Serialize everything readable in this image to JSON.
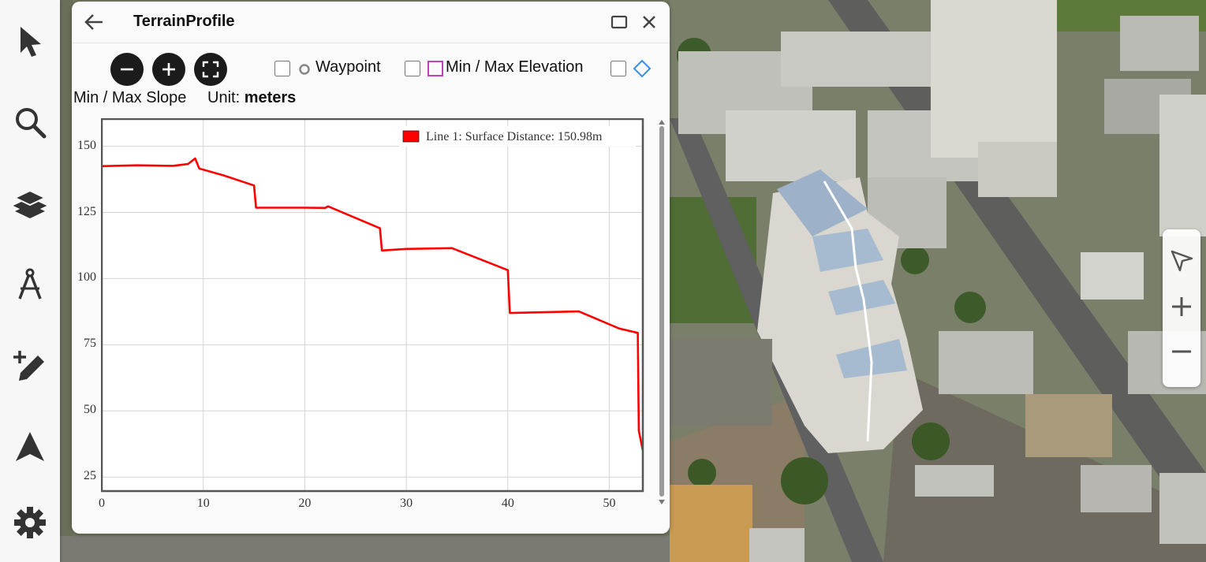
{
  "toolbar": {
    "items": [
      {
        "icon": "cursor-arrow-icon"
      },
      {
        "icon": "search-icon"
      },
      {
        "icon": "layers-icon"
      },
      {
        "icon": "measure-compass-icon"
      },
      {
        "icon": "draw-add-icon"
      },
      {
        "icon": "navigate-arrow-icon"
      },
      {
        "icon": "gear-icon"
      }
    ]
  },
  "panel": {
    "title": "TerrainProfile",
    "controls": {
      "zoom_out_icon": "minus-circle-icon",
      "zoom_in_icon": "plus-circle-icon",
      "fit_icon": "fullscreen-icon",
      "waypoint_label": "Waypoint",
      "minmax_elevation_label": "Min / Max Elevation",
      "minmax_slope_label": "Min / Max Slope",
      "unit_prefix": "Unit:",
      "unit_value": "meters",
      "waypoint_marker_color": "#888888",
      "elevation_marker_color": "#c040c0",
      "slope_marker_color": "#3a8ee6"
    }
  },
  "chart_data": {
    "type": "line",
    "xlim": [
      0,
      53.3
    ],
    "ylim": [
      20,
      160
    ],
    "x_ticks": [
      0,
      10,
      20,
      30,
      40,
      50
    ],
    "y_ticks": [
      25,
      50,
      75,
      100,
      125,
      150
    ],
    "grid": true,
    "legend": "top-right",
    "series": [
      {
        "name": "Line 1: Surface Distance: 150.98m",
        "color": "#ff0000",
        "points": [
          [
            0,
            142.5
          ],
          [
            3.5,
            142.8
          ],
          [
            7,
            142.6
          ],
          [
            8.5,
            143.3
          ],
          [
            9.2,
            145.4
          ],
          [
            9.6,
            141.6
          ],
          [
            12,
            139
          ],
          [
            15,
            135.2
          ],
          [
            15.2,
            126.8
          ],
          [
            20,
            126.8
          ],
          [
            22,
            126.7
          ],
          [
            22.3,
            127.3
          ],
          [
            27.4,
            119
          ],
          [
            27.6,
            110.6
          ],
          [
            30,
            111.2
          ],
          [
            34.5,
            111.5
          ],
          [
            40,
            103.2
          ],
          [
            40.2,
            87
          ],
          [
            47,
            87.6
          ],
          [
            51,
            81.1
          ],
          [
            52.8,
            79.5
          ],
          [
            52.9,
            42.5
          ],
          [
            53.3,
            35
          ]
        ]
      }
    ]
  },
  "nav": {
    "items": [
      {
        "icon": "compass-arrow-icon"
      },
      {
        "icon": "plus-icon"
      },
      {
        "icon": "minus-icon"
      }
    ]
  }
}
